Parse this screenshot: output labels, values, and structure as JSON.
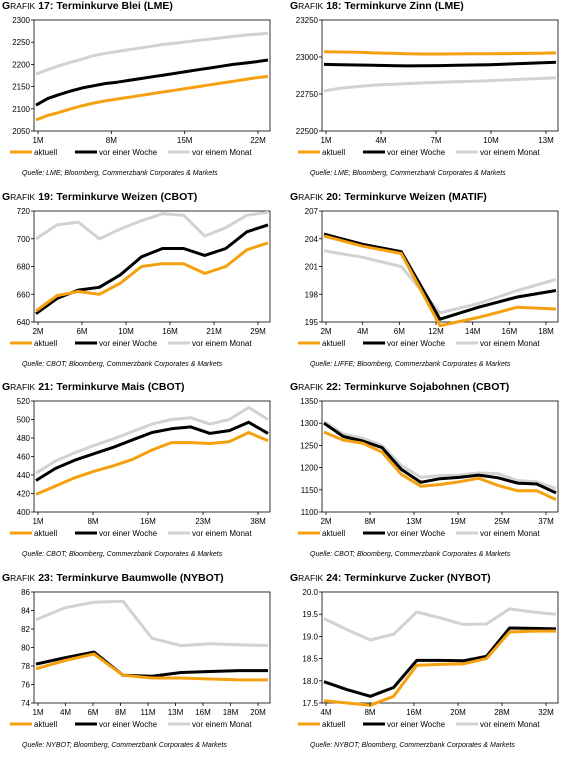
{
  "colors": {
    "aktuell": "#f5a00e",
    "woche": "#000000",
    "monat": "#d2d2d2"
  },
  "chart_data": [
    {
      "id": "g17",
      "type": "line",
      "title_prefix": "G",
      "title_prefix_sc": "RAFIK",
      "title_num": "17:",
      "title_text": "Terminkurve Blei (LME)",
      "ylim": [
        2050,
        2300
      ],
      "yticks": [
        "2050",
        "2100",
        "2150",
        "2200",
        "2250",
        "2300"
      ],
      "xticks": [
        "1M",
        "8M",
        "15M",
        "22M"
      ],
      "series": [
        {
          "name": "aktuell",
          "values": [
            2075,
            2085,
            2092,
            2100,
            2107,
            2113,
            2118,
            2122,
            2126,
            2130,
            2134,
            2138,
            2142,
            2146,
            2150,
            2154,
            2158,
            2162,
            2166,
            2170,
            2173
          ]
        },
        {
          "name": "vor einer Woche",
          "values": [
            2108,
            2123,
            2132,
            2140,
            2147,
            2152,
            2157,
            2160,
            2164,
            2168,
            2172,
            2176,
            2180,
            2184,
            2188,
            2192,
            2196,
            2200,
            2203,
            2206,
            2210
          ]
        },
        {
          "name": "vor einem Monat",
          "values": [
            2178,
            2188,
            2197,
            2205,
            2212,
            2220,
            2225,
            2229,
            2233,
            2237,
            2241,
            2245,
            2248,
            2251,
            2254,
            2257,
            2260,
            2263,
            2266,
            2268,
            2270
          ]
        }
      ],
      "legend": [
        "aktuell",
        "vor einer Woche",
        "vor einem Monat"
      ],
      "source": "Quelle: LME; Bloomberg, Commerzbank Corporates & Markets"
    },
    {
      "id": "g18",
      "type": "line",
      "title_prefix": "G",
      "title_prefix_sc": "RAFIK",
      "title_num": "18:",
      "title_text": "Terminkurve Zinn (LME)",
      "ylim": [
        22500,
        23250
      ],
      "yticks": [
        "22500",
        "22750",
        "23000",
        "23250"
      ],
      "xticks": [
        "1M",
        "4M",
        "7M",
        "10M",
        "13M"
      ],
      "series": [
        {
          "name": "aktuell",
          "values": [
            23035,
            23034,
            23032,
            23028,
            23025,
            23022,
            23020,
            23020,
            23021,
            23022,
            23022,
            23023,
            23024,
            23025,
            23028
          ]
        },
        {
          "name": "vor einer Woche",
          "values": [
            22950,
            22948,
            22946,
            22944,
            22942,
            22940,
            22941,
            22942,
            22944,
            22946,
            22948,
            22952,
            22956,
            22960,
            22965
          ]
        },
        {
          "name": "vor einem Monat",
          "values": [
            22770,
            22790,
            22800,
            22810,
            22815,
            22820,
            22825,
            22830,
            22833,
            22836,
            22840,
            22845,
            22850,
            22855,
            22860
          ]
        }
      ],
      "legend": [
        "aktuell",
        "vor einer Woche",
        "vor einem Monat"
      ],
      "source": "Quelle: LME; Bloomberg, Commerzbank Corporates & Markets"
    },
    {
      "id": "g19",
      "type": "line",
      "title_prefix": "G",
      "title_prefix_sc": "RAFIK",
      "title_num": "19:",
      "title_text": "Terminkurve Weizen (CBOT)",
      "ylim": [
        640,
        720
      ],
      "yticks": [
        "640",
        "660",
        "680",
        "700",
        "720"
      ],
      "xticks": [
        "2M",
        "6M",
        "10M",
        "16M",
        "21M",
        "29M"
      ],
      "series": [
        {
          "name": "aktuell",
          "values": [
            648,
            659,
            662,
            660,
            668,
            680,
            682,
            682,
            675,
            680,
            692,
            697
          ]
        },
        {
          "name": "vor einer Woche",
          "values": [
            646,
            657,
            663,
            665,
            674,
            687,
            693,
            693,
            688,
            693,
            705,
            710
          ]
        },
        {
          "name": "vor einem Monat",
          "values": [
            700,
            710,
            712,
            700,
            707,
            713,
            718,
            717,
            702,
            708,
            717,
            719
          ]
        }
      ],
      "legend": [
        "aktuell",
        "vor einer Woche",
        "vor einem Monat"
      ],
      "source": "Quelle: CBOT; Bloomberg, Commerzbank Corporates & Markets"
    },
    {
      "id": "g20",
      "type": "line",
      "title_prefix": "G",
      "title_prefix_sc": "RAFIK",
      "title_num": "20:",
      "title_text": "Terminkurve Weizen (MATIF)",
      "ylim": [
        195,
        207
      ],
      "yticks": [
        "195",
        "198",
        "201",
        "204",
        "207"
      ],
      "xticks": [
        "2M",
        "4M",
        "6M",
        "12M",
        "14M",
        "16M",
        "18M"
      ],
      "series": [
        {
          "name": "aktuell",
          "values": [
            204.3,
            203.2,
            202.4,
            194.6,
            195.5,
            196.6,
            196.4
          ]
        },
        {
          "name": "vor einer Woche",
          "values": [
            204.5,
            203.4,
            202.6,
            195.3,
            196.6,
            197.7,
            198.4
          ]
        },
        {
          "name": "vor einem Monat",
          "values": [
            202.7,
            202.0,
            201.0,
            196.0,
            197.0,
            198.4,
            199.6
          ]
        }
      ],
      "legend": [
        "aktuell",
        "vor einer Woche",
        "vor einem Monat"
      ],
      "source": "Quelle: LIFFE; Bloomberg, Commerzbank Corporates & Markets"
    },
    {
      "id": "g21",
      "type": "line",
      "title_prefix": "G",
      "title_prefix_sc": "RAFIK",
      "title_num": "21:",
      "title_text": "Terminkurve Mais (CBOT)",
      "ylim": [
        400,
        520
      ],
      "yticks": [
        "400",
        "420",
        "440",
        "460",
        "480",
        "500",
        "520"
      ],
      "xticks": [
        "1M",
        "8M",
        "16M",
        "23M",
        "38M"
      ],
      "series": [
        {
          "name": "aktuell",
          "values": [
            419,
            428,
            437,
            444,
            450,
            457,
            467,
            475,
            475,
            474,
            476,
            486,
            477
          ]
        },
        {
          "name": "vor einer Woche",
          "values": [
            434,
            447,
            456,
            463,
            470,
            478,
            486,
            490,
            492,
            485,
            488,
            497,
            485
          ]
        },
        {
          "name": "vor einem Monat",
          "values": [
            442,
            455,
            464,
            472,
            479,
            487,
            495,
            500,
            502,
            495,
            500,
            513,
            500
          ]
        }
      ],
      "legend": [
        "aktuell",
        "vor einer Woche",
        "vor einem Monat"
      ],
      "source": "Quelle: CBOT; Bloomberg, Commerzbank Corporates & Markets"
    },
    {
      "id": "g22",
      "type": "line",
      "title_prefix": "G",
      "title_prefix_sc": "RAFIK",
      "title_num": "22:",
      "title_text": "Terminkurve Sojabohnen (CBOT)",
      "ylim": [
        1100,
        1350
      ],
      "yticks": [
        "1100",
        "1150",
        "1200",
        "1250",
        "1300",
        "1350"
      ],
      "xticks": [
        "2M",
        "8M",
        "13M",
        "19M",
        "25M",
        "37M"
      ],
      "series": [
        {
          "name": "aktuell",
          "values": [
            1280,
            1262,
            1255,
            1235,
            1185,
            1158,
            1162,
            1168,
            1176,
            1160,
            1148,
            1148,
            1128
          ]
        },
        {
          "name": "vor einer Woche",
          "values": [
            1300,
            1270,
            1260,
            1245,
            1196,
            1167,
            1175,
            1178,
            1183,
            1177,
            1165,
            1163,
            1143
          ]
        },
        {
          "name": "vor einem Monat",
          "values": [
            1303,
            1276,
            1266,
            1250,
            1205,
            1178,
            1182,
            1183,
            1188,
            1186,
            1171,
            1168,
            1153
          ]
        }
      ],
      "legend": [
        "aktuell",
        "vor einer Woche",
        "vor einem Monat"
      ],
      "source": "Quelle: CBOT; Bloomberg, Commerzbank Corporates & Markets"
    },
    {
      "id": "g23",
      "type": "line",
      "title_prefix": "G",
      "title_prefix_sc": "RAFIK",
      "title_num": "23:",
      "title_text": "Terminkurve Baumwolle (NYBOT)",
      "ylim": [
        74,
        86
      ],
      "yticks": [
        "74",
        "76",
        "78",
        "80",
        "82",
        "84",
        "86"
      ],
      "xticks": [
        "1M",
        "4M",
        "6M",
        "8M",
        "11M",
        "13M",
        "16M",
        "18M",
        "20M"
      ],
      "series": [
        {
          "name": "aktuell",
          "values": [
            77.7,
            78.6,
            79.3,
            77.0,
            76.7,
            76.7,
            76.6,
            76.5,
            76.5
          ]
        },
        {
          "name": "vor einer Woche",
          "values": [
            78.2,
            78.9,
            79.5,
            77.0,
            76.9,
            77.3,
            77.4,
            77.5,
            77.5
          ]
        },
        {
          "name": "vor einem Monat",
          "values": [
            83.0,
            84.3,
            84.9,
            85.0,
            81.0,
            80.2,
            80.4,
            80.3,
            80.2
          ]
        }
      ],
      "legend": [
        "aktuell",
        "vor einer Woche",
        "vor einem Monat"
      ],
      "source": "Quelle: NYBOT; Bloomberg, Commerzbank Corporates & Markets"
    },
    {
      "id": "g24",
      "type": "line",
      "title_prefix": "G",
      "title_prefix_sc": "RAFIK",
      "title_num": "24:",
      "title_text": "Terminkurve Zucker (NYBOT)",
      "ylim": [
        17.5,
        20.0
      ],
      "yticks": [
        "17.5",
        "18.0",
        "18.5",
        "19.0",
        "19.5",
        "20.0"
      ],
      "xticks": [
        "4M",
        "8M",
        "16M",
        "20M",
        "28M",
        "32M"
      ],
      "series": [
        {
          "name": "aktuell",
          "values": [
            17.55,
            17.5,
            17.45,
            17.65,
            18.35,
            18.37,
            18.38,
            18.5,
            19.1,
            19.12,
            19.12
          ]
        },
        {
          "name": "vor einer Woche",
          "values": [
            17.98,
            17.8,
            17.65,
            17.85,
            18.46,
            18.46,
            18.45,
            18.55,
            19.19,
            19.18,
            19.17
          ]
        },
        {
          "name": "vor einem Monat",
          "values": [
            19.4,
            19.15,
            18.92,
            19.05,
            19.55,
            19.42,
            19.27,
            19.28,
            19.62,
            19.55,
            19.5
          ]
        }
      ],
      "legend": [
        "aktuell",
        "vor einer Woche",
        "vor einem Monat"
      ],
      "source": "Quelle: NYBOT; Bloomberg, Commerzbank Corporates & Markets"
    }
  ]
}
